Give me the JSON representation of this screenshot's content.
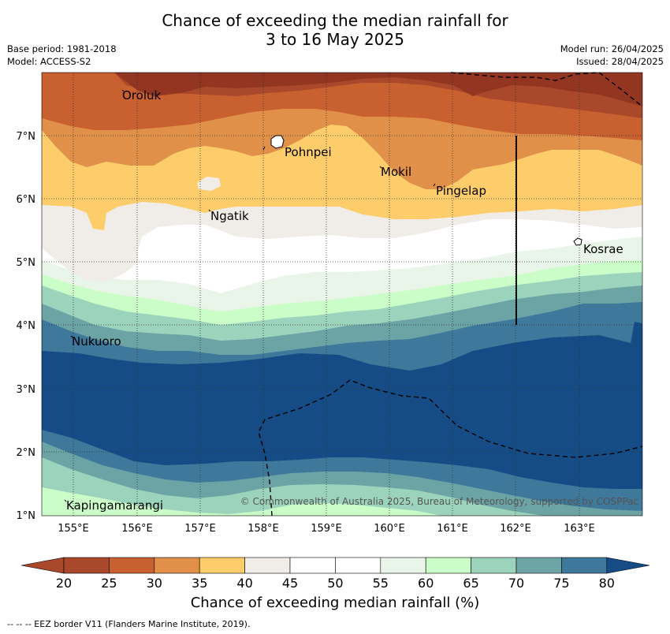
{
  "title_line1": "Chance of exceeding the median rainfall for",
  "title_line2": "3 to 16 May 2025",
  "left_meta": [
    "Base period: 1981-2018",
    "Model: ACCESS-S2"
  ],
  "right_meta": [
    "Model run: 26/04/2025",
    "Issued: 28/04/2025"
  ],
  "copyright": "© Commonwealth of Australia 2025, Bureau of Meteorology, supported by COSPPac",
  "x_ticks": [
    "155°E",
    "156°E",
    "157°E",
    "158°E",
    "159°E",
    "160°E",
    "161°E",
    "162°E",
    "163°E"
  ],
  "y_ticks": [
    "7°N",
    "6°N",
    "5°N",
    "4°N",
    "3°N",
    "2°N",
    "1°N"
  ],
  "places": [
    "Oroluk",
    "Pohnpei",
    "Mokil",
    "Pingelap",
    "Ngatik",
    "Kosrae",
    "Nukuoro",
    "Kapingamarangi"
  ],
  "colorbar": {
    "ticks": [
      "20",
      "25",
      "30",
      "35",
      "40",
      "45",
      "50",
      "55",
      "60",
      "65",
      "70",
      "75",
      "80"
    ],
    "colors": [
      "#a9482a",
      "#c9602f",
      "#e09049",
      "#fdcd6b",
      "#f0ede8",
      "#ffffff",
      "#ffffff",
      "#e9f5e8",
      "#cbfdc8",
      "#9cd3bc",
      "#6ca4a6",
      "#3e789b",
      "#154c86"
    ],
    "caption": "Chance of exceeding median rainfall (%)"
  },
  "footer": "--  --  -- EEZ border V11 (Flanders Marine Institute, 2019)."
}
